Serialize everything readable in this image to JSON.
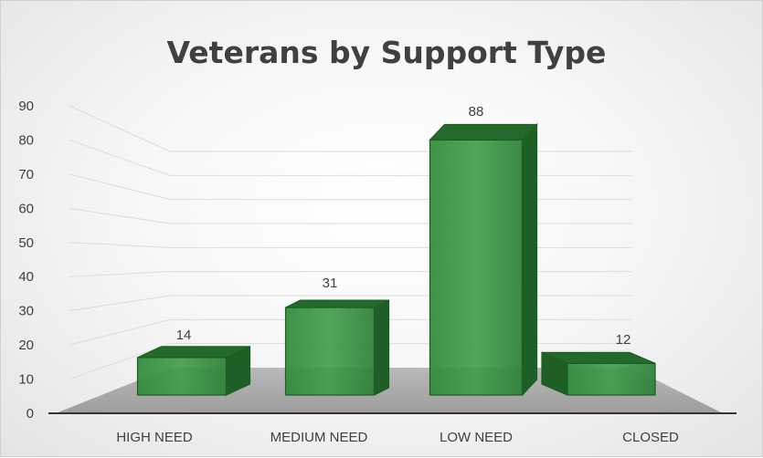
{
  "chart_data": {
    "type": "bar",
    "title": "Veterans by Support Type",
    "xlabel": "",
    "ylabel": "",
    "categories": [
      "HIGH NEED",
      "MEDIUM NEED",
      "LOW NEED",
      "CLOSED"
    ],
    "values": [
      14,
      31,
      88,
      12
    ],
    "ylim": [
      0,
      90
    ],
    "yticks": [
      "0",
      "10",
      "20",
      "30",
      "40",
      "50",
      "60",
      "70",
      "80",
      "90"
    ],
    "grid": true,
    "legend": "none",
    "bar_color": "#2e7d32",
    "style": "3d-column"
  }
}
